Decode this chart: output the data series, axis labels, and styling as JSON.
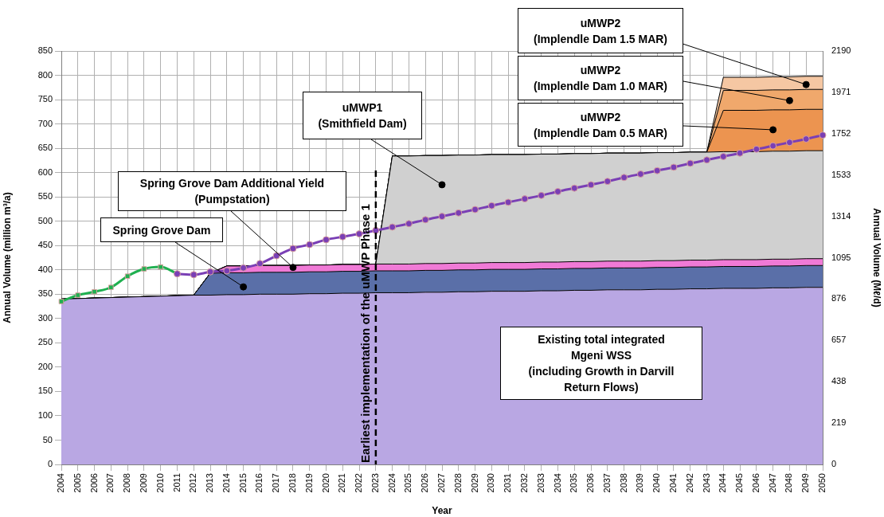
{
  "chart_data": {
    "type": "area",
    "stacked": true,
    "xlabel": "Year",
    "ylabel": "Annual Volume (million m³/a)",
    "y2label": "Annual Volume (Mℓ/d)",
    "categories": [
      "2004",
      "2005",
      "2006",
      "2007",
      "2008",
      "2009",
      "2010",
      "2011",
      "2012",
      "2013",
      "2014",
      "2015",
      "2016",
      "2017",
      "2018",
      "2019",
      "2020",
      "2021",
      "2022",
      "2023",
      "2024",
      "2025",
      "2026",
      "2027",
      "2028",
      "2029",
      "2030",
      "2031",
      "2032",
      "2033",
      "2034",
      "2035",
      "2036",
      "2037",
      "2038",
      "2039",
      "2040",
      "2041",
      "2042",
      "2043",
      "2044",
      "2045",
      "2046",
      "2047",
      "2048",
      "2049",
      "2050"
    ],
    "ylim": [
      0,
      850
    ],
    "yticks": [
      0,
      50,
      100,
      150,
      200,
      250,
      300,
      350,
      400,
      450,
      500,
      550,
      600,
      650,
      700,
      750,
      800,
      850
    ],
    "y2lim": [
      0,
      2190
    ],
    "y2ticks": [
      0,
      219,
      438,
      657,
      876,
      1095,
      1314,
      1533,
      1752,
      1971,
      2190
    ],
    "grid": true,
    "legend": false,
    "series": [
      {
        "color": "#b9a7e3",
        "values": [
          340,
          341,
          342,
          343,
          344,
          345,
          346,
          347,
          348,
          348,
          349,
          349,
          350,
          350,
          350,
          351,
          351,
          352,
          352,
          353,
          353,
          353,
          354,
          354,
          355,
          355,
          356,
          356,
          356,
          357,
          357,
          358,
          358,
          359,
          359,
          359,
          360,
          360,
          361,
          361,
          362,
          362,
          362,
          363,
          363,
          364,
          364
        ]
      },
      {
        "color": "#5a6fa8",
        "values": [
          0,
          0,
          0,
          0,
          0,
          0,
          0,
          0,
          0,
          45,
          45,
          45,
          45,
          45,
          45,
          45,
          45,
          45,
          45,
          45,
          45,
          45,
          45,
          45,
          45,
          45,
          45,
          45,
          45,
          45,
          45,
          45,
          45,
          45,
          45,
          45,
          45,
          45,
          45,
          45,
          45,
          45,
          45,
          45,
          45,
          45,
          45
        ]
      },
      {
        "color": "#f07ad6",
        "values": [
          0,
          0,
          0,
          0,
          0,
          0,
          0,
          0,
          0,
          0,
          14,
          14,
          14,
          14,
          14,
          14,
          14,
          14,
          14,
          14,
          14,
          14,
          14,
          14,
          14,
          14,
          14,
          14,
          14,
          14,
          14,
          14,
          14,
          14,
          14,
          14,
          14,
          14,
          14,
          14,
          14,
          14,
          14,
          14,
          14,
          14,
          14
        ]
      },
      {
        "color": "#d0d0d0",
        "values": [
          0,
          0,
          0,
          0,
          0,
          0,
          0,
          0,
          0,
          0,
          0,
          0,
          0,
          0,
          0,
          0,
          0,
          0,
          0,
          0,
          222,
          222,
          222,
          222,
          222,
          222,
          222,
          222,
          222,
          222,
          222,
          222,
          222,
          222,
          222,
          222,
          222,
          222,
          222,
          222,
          222,
          222,
          222,
          222,
          222,
          222,
          222
        ]
      },
      {
        "color": "#ec9450",
        "values": [
          0,
          0,
          0,
          0,
          0,
          0,
          0,
          0,
          0,
          0,
          0,
          0,
          0,
          0,
          0,
          0,
          0,
          0,
          0,
          0,
          0,
          0,
          0,
          0,
          0,
          0,
          0,
          0,
          0,
          0,
          0,
          0,
          0,
          0,
          0,
          0,
          0,
          0,
          0,
          0,
          85,
          85,
          85,
          85,
          85,
          85,
          85
        ]
      },
      {
        "color": "#f0a86c",
        "values": [
          0,
          0,
          0,
          0,
          0,
          0,
          0,
          0,
          0,
          0,
          0,
          0,
          0,
          0,
          0,
          0,
          0,
          0,
          0,
          0,
          0,
          0,
          0,
          0,
          0,
          0,
          0,
          0,
          0,
          0,
          0,
          0,
          0,
          0,
          0,
          0,
          0,
          0,
          0,
          0,
          41,
          41,
          41,
          41,
          41,
          41,
          41
        ]
      },
      {
        "color": "#f5c7a3",
        "values": [
          0,
          0,
          0,
          0,
          0,
          0,
          0,
          0,
          0,
          0,
          0,
          0,
          0,
          0,
          0,
          0,
          0,
          0,
          0,
          0,
          0,
          0,
          0,
          0,
          0,
          0,
          0,
          0,
          0,
          0,
          0,
          0,
          0,
          0,
          0,
          0,
          0,
          0,
          0,
          0,
          27,
          27,
          27,
          27,
          27,
          27,
          27
        ]
      },
      {
        "type": "line",
        "marker": "square",
        "color": "#1fb050",
        "values": [
          335,
          348,
          355,
          364,
          387,
          402,
          406,
          392,
          null,
          null,
          null,
          null,
          null,
          null,
          null,
          null,
          null,
          null,
          null,
          null,
          null,
          null,
          null,
          null,
          null,
          null,
          null,
          null,
          null,
          null,
          null,
          null,
          null,
          null,
          null,
          null,
          null,
          null,
          null,
          null,
          null,
          null,
          null,
          null,
          null,
          null,
          null
        ]
      },
      {
        "type": "line",
        "marker": "circle",
        "color": "#7a3fb5",
        "values": [
          null,
          null,
          null,
          null,
          null,
          null,
          null,
          392,
          390,
          396,
          398,
          404,
          413,
          429,
          444,
          452,
          462,
          468,
          474,
          481,
          488,
          495,
          503,
          510,
          517,
          524,
          532,
          539,
          546,
          553,
          561,
          568,
          575,
          582,
          590,
          597,
          604,
          611,
          619,
          626,
          633,
          640,
          648,
          655,
          662,
          669,
          677
        ]
      }
    ],
    "ref_lines": [
      {
        "axis": "x",
        "value": "2023",
        "label": "Earliest implementation of the uMWP Phase 1",
        "color": "#000000",
        "line_style": "dashed"
      }
    ],
    "annotations": [
      {
        "text": "Spring Grove Dam",
        "x": "2015",
        "y": 365
      },
      {
        "text": "Spring Grove Dam Additional Yield\n(Pumpstation)",
        "x": "2018",
        "y": 405
      },
      {
        "text": "uMWP1\n(Smithfield Dam)",
        "x": "2027",
        "y": 575
      },
      {
        "text": "uMWP2\n(Implendle Dam 1.5 MAR)",
        "x": "2049",
        "y": 781
      },
      {
        "text": "uMWP2\n(Implendle Dam 1.0 MAR)",
        "x": "2048",
        "y": 748
      },
      {
        "text": "uMWP2\n(Implendle Dam 0.5 MAR)",
        "x": "2047",
        "y": 688
      },
      "Existing total integrated\nMgeni WSS\n(including Growth in Darvill\nReturn Flows)"
    ]
  }
}
